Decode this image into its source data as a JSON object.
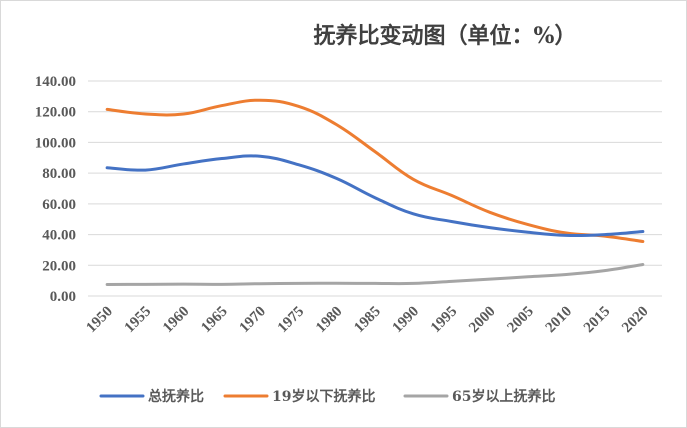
{
  "chart_data": {
    "type": "line",
    "title": "抚养比变动图（单位：%）",
    "xlabel": "",
    "ylabel": "",
    "x": [
      "1950",
      "1955",
      "1960",
      "1965",
      "1970",
      "1975",
      "1980",
      "1985",
      "1990",
      "1995",
      "2000",
      "2005",
      "2010",
      "2015",
      "2020"
    ],
    "ylim": [
      0,
      140
    ],
    "yticks": [
      "0.00",
      "20.00",
      "40.00",
      "60.00",
      "80.00",
      "100.00",
      "120.00",
      "140.00"
    ],
    "grid": true,
    "legend_position": "bottom",
    "series": [
      {
        "name": "总抚养比",
        "color": "#4472c4",
        "values": [
          83.5,
          82.0,
          86.0,
          89.5,
          91.0,
          85.5,
          76.5,
          64.0,
          53.5,
          48.5,
          44.5,
          41.5,
          39.5,
          40.0,
          42.0
        ]
      },
      {
        "name": "19岁以下抚养比",
        "color": "#ed7d31",
        "values": [
          121.5,
          118.5,
          118.5,
          124.0,
          127.5,
          123.5,
          111.5,
          94.0,
          76.0,
          65.5,
          54.5,
          46.5,
          41.0,
          39.0,
          35.5
        ]
      },
      {
        "name": "65岁以上抚养比",
        "color": "#a5a5a5",
        "values": [
          7.5,
          7.6,
          7.7,
          7.6,
          8.0,
          8.2,
          8.3,
          8.2,
          8.2,
          9.5,
          11.0,
          12.5,
          14.0,
          16.5,
          20.5
        ]
      }
    ]
  }
}
